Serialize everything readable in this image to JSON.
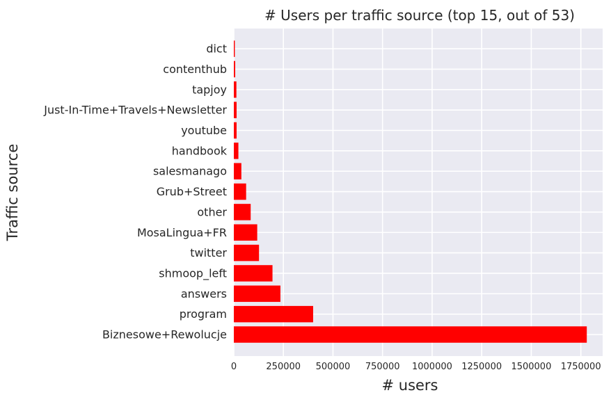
{
  "chart_data": {
    "type": "bar",
    "orientation": "horizontal",
    "title": "# Users per traffic source (top 15, out of 53)",
    "xlabel": "# users",
    "ylabel": "Traffic source",
    "bar_color": "#ff0000",
    "background_color": "#eaeaf2",
    "grid": true,
    "xlim": [
      0,
      1860000
    ],
    "xticks": [
      0,
      250000,
      500000,
      750000,
      1000000,
      1250000,
      1500000,
      1750000
    ],
    "xtick_labels": [
      "0",
      "250000",
      "500000",
      "750000",
      "1000000",
      "1250000",
      "1500000",
      "1750000"
    ],
    "categories": [
      "Biznesowe+Rewolucje",
      "program",
      "answers",
      "shmoop_left",
      "twitter",
      "MosaLingua+FR",
      "other",
      "Grub+Street",
      "salesmanago",
      "handbook",
      "youtube",
      "Just-In-Time+Travels+Newsletter",
      "tapjoy",
      "contenthub",
      "dict"
    ],
    "values": [
      1780000,
      400000,
      235000,
      195000,
      127000,
      118000,
      85000,
      62000,
      38000,
      23000,
      14000,
      14000,
      13000,
      7000,
      5000
    ]
  }
}
